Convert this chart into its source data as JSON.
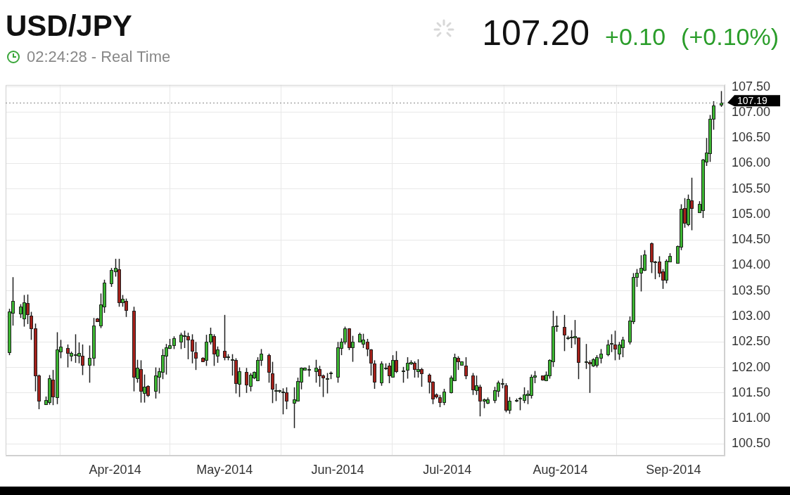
{
  "chart_data": {
    "type": "candlestick",
    "title": "USD/JPY",
    "subtitle": "02:24:28 - Real Time",
    "annotations": [
      "107.20",
      "+0.10",
      "(+0.10%)"
    ],
    "x": [
      "2014-03-03",
      "2014-03-04",
      "2014-03-06",
      "2014-03-07",
      "2014-03-08",
      "2014-03-09",
      "2014-03-10",
      "2014-03-11",
      "2014-03-13",
      "2014-03-14",
      "2014-03-15",
      "2014-03-16",
      "2014-03-17",
      "2014-03-19",
      "2014-03-20",
      "2014-03-21",
      "2014-03-22",
      "2014-03-23",
      "2014-03-25",
      "2014-03-26",
      "2014-03-27",
      "2014-03-28",
      "2014-03-29",
      "2014-03-31",
      "2014-04-01",
      "2014-04-02",
      "2014-04-03",
      "2014-04-04",
      "2014-04-06",
      "2014-04-07",
      "2014-04-08",
      "2014-04-09",
      "2014-04-10",
      "2014-04-12",
      "2014-04-13",
      "2014-04-14",
      "2014-04-15",
      "2014-04-16",
      "2014-04-17",
      "2014-04-19",
      "2014-04-20",
      "2014-04-21",
      "2014-04-22",
      "2014-04-23",
      "2014-04-25",
      "2014-04-26",
      "2014-04-27",
      "2014-04-28",
      "2014-04-29",
      "2014-05-01",
      "2014-05-02",
      "2014-05-03",
      "2014-05-04",
      "2014-05-05",
      "2014-05-07",
      "2014-05-08",
      "2014-05-09",
      "2014-05-10",
      "2014-05-11",
      "2014-05-13",
      "2014-05-14",
      "2014-05-15",
      "2014-05-16",
      "2014-05-17",
      "2014-05-18",
      "2014-05-20",
      "2014-05-21",
      "2014-05-22",
      "2014-05-23",
      "2014-05-24",
      "2014-05-26",
      "2014-05-27",
      "2014-05-28",
      "2014-05-29",
      "2014-05-30",
      "2014-06-01",
      "2014-06-02",
      "2014-06-03",
      "2014-06-04",
      "2014-06-05",
      "2014-06-07",
      "2014-06-08",
      "2014-06-09",
      "2014-06-10",
      "2014-06-11",
      "2014-06-13",
      "2014-06-14",
      "2014-06-15",
      "2014-06-16",
      "2014-06-17",
      "2014-06-19",
      "2014-06-20",
      "2014-06-21",
      "2014-06-22",
      "2014-06-23",
      "2014-06-24",
      "2014-06-26",
      "2014-06-27",
      "2014-06-28",
      "2014-06-29",
      "2014-06-30",
      "2014-07-02",
      "2014-07-03",
      "2014-07-04",
      "2014-07-05",
      "2014-07-06",
      "2014-07-08",
      "2014-07-09",
      "2014-07-10",
      "2014-07-11",
      "2014-07-12",
      "2014-07-14",
      "2014-07-15",
      "2014-07-16",
      "2014-07-17",
      "2014-07-18",
      "2014-07-20",
      "2014-07-21",
      "2014-07-22",
      "2014-07-23",
      "2014-07-24",
      "2014-07-25",
      "2014-07-27",
      "2014-07-28",
      "2014-07-29",
      "2014-07-30",
      "2014-07-31",
      "2014-08-02",
      "2014-08-03",
      "2014-08-04",
      "2014-08-05",
      "2014-08-06",
      "2014-08-08",
      "2014-08-09",
      "2014-08-10",
      "2014-08-11",
      "2014-08-12",
      "2014-08-14",
      "2014-08-15",
      "2014-08-16",
      "2014-08-17",
      "2014-08-18",
      "2014-08-20",
      "2014-08-21",
      "2014-08-22",
      "2014-08-23",
      "2014-08-24",
      "2014-08-26",
      "2014-08-27",
      "2014-08-28",
      "2014-08-29",
      "2014-08-30",
      "2014-08-31",
      "2014-09-02",
      "2014-09-03",
      "2014-09-04",
      "2014-09-05",
      "2014-09-06",
      "2014-09-08",
      "2014-09-09",
      "2014-09-10",
      "2014-09-11",
      "2014-09-12",
      "2014-09-14"
    ],
    "ohlc": [
      [
        102.3,
        103.15,
        102.24,
        103.1
      ],
      [
        103.07,
        103.77,
        102.82,
        103.3
      ],
      [
        103.05,
        103.24,
        102.97,
        103.19
      ],
      [
        102.96,
        103.42,
        102.8,
        103.28
      ],
      [
        103.26,
        103.43,
        102.85,
        103.04
      ],
      [
        103.01,
        103.09,
        102.54,
        102.77
      ],
      [
        102.76,
        102.86,
        101.53,
        101.84
      ],
      [
        101.84,
        101.86,
        101.18,
        101.35
      ],
      [
        101.28,
        101.43,
        101.27,
        101.36
      ],
      [
        101.32,
        101.85,
        101.27,
        101.78
      ],
      [
        101.76,
        101.95,
        101.26,
        101.43
      ],
      [
        101.42,
        102.69,
        101.28,
        102.35
      ],
      [
        102.31,
        102.54,
        102.18,
        102.41
      ],
      [
        102.38,
        102.45,
        102.0,
        102.28
      ],
      [
        102.23,
        102.31,
        102.12,
        102.28
      ],
      [
        102.25,
        102.65,
        102.09,
        102.26
      ],
      [
        102.23,
        102.49,
        102.08,
        102.28
      ],
      [
        102.23,
        102.45,
        101.85,
        102.05
      ],
      [
        102.05,
        102.43,
        101.7,
        102.18
      ],
      [
        102.18,
        102.97,
        102.03,
        102.82
      ],
      [
        102.96,
        102.97,
        102.89,
        102.91
      ],
      [
        102.82,
        103.45,
        102.77,
        103.24
      ],
      [
        103.19,
        103.72,
        103.07,
        103.66
      ],
      [
        103.65,
        103.95,
        103.58,
        103.91
      ],
      [
        103.88,
        104.13,
        103.78,
        103.95
      ],
      [
        103.92,
        104.13,
        103.19,
        103.28
      ],
      [
        103.28,
        103.42,
        103.19,
        103.35
      ],
      [
        103.31,
        103.35,
        102.99,
        103.12
      ],
      [
        103.11,
        103.19,
        101.53,
        101.81
      ],
      [
        101.78,
        102.15,
        101.7,
        101.99
      ],
      [
        101.97,
        102.14,
        101.31,
        101.54
      ],
      [
        101.5,
        101.86,
        101.31,
        101.62
      ],
      [
        101.64,
        101.65,
        101.42,
        101.46
      ],
      [
        101.54,
        102.0,
        101.39,
        101.84
      ],
      [
        101.82,
        101.99,
        101.49,
        101.93
      ],
      [
        101.91,
        102.36,
        101.77,
        102.24
      ],
      [
        102.23,
        102.46,
        101.86,
        102.39
      ],
      [
        102.38,
        102.56,
        102.36,
        102.43
      ],
      [
        102.43,
        102.61,
        102.36,
        102.57
      ],
      [
        102.5,
        102.68,
        102.36,
        102.64
      ],
      [
        102.62,
        102.72,
        102.38,
        102.63
      ],
      [
        102.62,
        102.68,
        102.16,
        102.54
      ],
      [
        102.54,
        102.65,
        102.08,
        102.32
      ],
      [
        102.3,
        102.5,
        101.95,
        102.18
      ],
      [
        102.19,
        102.2,
        102.12,
        102.12
      ],
      [
        102.15,
        102.64,
        102.03,
        102.5
      ],
      [
        102.5,
        102.78,
        102.45,
        102.65
      ],
      [
        102.62,
        102.65,
        102.03,
        102.27
      ],
      [
        102.23,
        102.41,
        102.09,
        102.35
      ],
      [
        102.32,
        103.03,
        102.14,
        102.2
      ],
      [
        102.2,
        102.26,
        102.14,
        102.21
      ],
      [
        102.15,
        102.26,
        101.84,
        102.16
      ],
      [
        102.14,
        102.18,
        101.49,
        101.69
      ],
      [
        101.68,
        102.0,
        101.42,
        101.93
      ],
      [
        101.91,
        101.99,
        101.5,
        101.66
      ],
      [
        101.64,
        101.89,
        101.53,
        101.86
      ],
      [
        101.8,
        101.92,
        101.77,
        101.91
      ],
      [
        101.74,
        102.2,
        101.73,
        102.14
      ],
      [
        102.14,
        102.36,
        102.03,
        102.27
      ],
      [
        102.24,
        102.27,
        101.7,
        101.91
      ],
      [
        101.88,
        102.11,
        101.3,
        101.58
      ],
      [
        101.54,
        101.68,
        101.34,
        101.55
      ],
      [
        101.54,
        101.56,
        101.5,
        101.55
      ],
      [
        101.51,
        101.59,
        101.08,
        101.52
      ],
      [
        101.51,
        101.61,
        101.18,
        101.34
      ],
      [
        101.31,
        101.61,
        100.81,
        101.38
      ],
      [
        101.34,
        101.8,
        101.34,
        101.73
      ],
      [
        101.72,
        102.0,
        101.57,
        101.99
      ],
      [
        101.95,
        102.0,
        101.94,
        101.99
      ],
      [
        101.96,
        102.04,
        101.82,
        101.97
      ],
      [
        101.92,
        102.15,
        101.7,
        102.0
      ],
      [
        101.97,
        102.03,
        101.62,
        101.84
      ],
      [
        101.84,
        101.86,
        101.42,
        101.8
      ],
      [
        101.78,
        101.89,
        101.49,
        101.79
      ],
      [
        101.89,
        101.92,
        101.77,
        101.9
      ],
      [
        101.81,
        102.5,
        101.7,
        102.39
      ],
      [
        102.38,
        102.57,
        102.24,
        102.51
      ],
      [
        102.51,
        102.8,
        102.45,
        102.77
      ],
      [
        102.76,
        102.77,
        102.34,
        102.39
      ],
      [
        102.39,
        102.62,
        102.11,
        102.5
      ],
      [
        102.51,
        102.68,
        102.51,
        102.65
      ],
      [
        102.46,
        102.66,
        102.38,
        102.54
      ],
      [
        102.51,
        102.56,
        102.22,
        102.36
      ],
      [
        102.35,
        102.36,
        101.84,
        102.09
      ],
      [
        102.07,
        102.14,
        101.58,
        101.72
      ],
      [
        101.7,
        102.12,
        101.64,
        102.08
      ],
      [
        101.99,
        102.08,
        101.95,
        102.0
      ],
      [
        102.04,
        102.09,
        101.69,
        101.84
      ],
      [
        101.82,
        102.24,
        101.8,
        102.15
      ],
      [
        102.15,
        102.32,
        101.89,
        101.93
      ],
      [
        101.92,
        102.01,
        101.7,
        101.94
      ],
      [
        101.95,
        102.2,
        101.78,
        102.09
      ],
      [
        102.07,
        102.14,
        102.05,
        102.11
      ],
      [
        102.09,
        102.12,
        101.8,
        101.96
      ],
      [
        101.93,
        102.16,
        101.8,
        101.97
      ],
      [
        101.97,
        101.99,
        101.62,
        101.88
      ],
      [
        101.86,
        101.88,
        101.49,
        101.72
      ],
      [
        101.72,
        101.73,
        101.28,
        101.39
      ],
      [
        101.47,
        101.49,
        101.39,
        101.43
      ],
      [
        101.42,
        101.46,
        101.22,
        101.32
      ],
      [
        101.32,
        101.58,
        101.26,
        101.53
      ],
      [
        101.51,
        101.84,
        101.49,
        101.8
      ],
      [
        101.74,
        102.27,
        101.73,
        102.2
      ],
      [
        102.18,
        102.22,
        101.95,
        102.12
      ],
      [
        102.05,
        102.12,
        102.05,
        102.12
      ],
      [
        102.04,
        102.2,
        101.77,
        101.84
      ],
      [
        101.84,
        101.89,
        101.46,
        101.57
      ],
      [
        101.55,
        101.84,
        101.46,
        101.65
      ],
      [
        101.62,
        101.66,
        101.04,
        101.34
      ],
      [
        101.34,
        101.39,
        101.2,
        101.38
      ],
      [
        101.3,
        101.41,
        101.28,
        101.38
      ],
      [
        101.36,
        101.62,
        101.3,
        101.55
      ],
      [
        101.54,
        101.74,
        101.42,
        101.7
      ],
      [
        101.68,
        101.78,
        101.59,
        101.69
      ],
      [
        101.65,
        101.69,
        101.12,
        101.16
      ],
      [
        101.16,
        101.42,
        101.09,
        101.34
      ],
      [
        101.34,
        101.39,
        101.32,
        101.36
      ],
      [
        101.39,
        101.42,
        101.16,
        101.4
      ],
      [
        101.36,
        101.61,
        101.3,
        101.47
      ],
      [
        101.45,
        101.55,
        101.28,
        101.49
      ],
      [
        101.46,
        101.86,
        101.39,
        101.81
      ],
      [
        101.81,
        101.93,
        101.69,
        101.84
      ],
      [
        101.84,
        101.84,
        101.74,
        101.76
      ],
      [
        101.74,
        101.92,
        101.73,
        101.86
      ],
      [
        101.84,
        102.16,
        101.78,
        102.14
      ],
      [
        102.12,
        103.11,
        102.01,
        102.81
      ],
      [
        102.81,
        103.01,
        102.7,
        102.82
      ],
      [
        102.8,
        103.03,
        102.32,
        102.64
      ],
      [
        102.58,
        102.62,
        102.54,
        102.59
      ],
      [
        102.59,
        102.73,
        102.38,
        102.6
      ],
      [
        102.58,
        102.93,
        102.45,
        102.61
      ],
      [
        102.58,
        102.58,
        101.77,
        102.11
      ],
      [
        102.11,
        102.46,
        101.97,
        102.12
      ],
      [
        102.11,
        102.14,
        101.5,
        102.07
      ],
      [
        102.03,
        102.18,
        102.01,
        102.16
      ],
      [
        102.05,
        102.24,
        102.0,
        102.2
      ],
      [
        102.18,
        102.36,
        102.08,
        102.27
      ],
      [
        102.26,
        102.54,
        102.22,
        102.45
      ],
      [
        102.46,
        102.65,
        102.3,
        102.47
      ],
      [
        102.45,
        102.72,
        102.14,
        102.36
      ],
      [
        102.27,
        102.5,
        102.15,
        102.45
      ],
      [
        102.4,
        102.6,
        102.2,
        102.54
      ],
      [
        102.51,
        103.0,
        102.45,
        102.92
      ],
      [
        102.91,
        103.85,
        102.85,
        103.77
      ],
      [
        103.77,
        103.93,
        103.58,
        103.85
      ],
      [
        103.85,
        104.2,
        103.49,
        103.95
      ],
      [
        103.91,
        104.3,
        103.89,
        104.22
      ],
      [
        104.43,
        104.45,
        103.85,
        104.07
      ],
      [
        104.07,
        104.09,
        103.73,
        104.08
      ],
      [
        104.08,
        104.18,
        103.77,
        103.86
      ],
      [
        103.88,
        103.93,
        103.54,
        103.72
      ],
      [
        103.72,
        104.12,
        103.65,
        104.09
      ],
      [
        104.07,
        104.24,
        104.07,
        104.19
      ],
      [
        104.05,
        104.39,
        104.05,
        104.38
      ],
      [
        104.36,
        105.2,
        104.3,
        105.11
      ],
      [
        105.12,
        105.32,
        104.74,
        104.84
      ],
      [
        104.8,
        105.39,
        104.77,
        105.3
      ],
      [
        105.27,
        105.72,
        104.69,
        105.12
      ],
      [
        105.04,
        105.26,
        105.04,
        105.2
      ],
      [
        105.08,
        106.09,
        104.93,
        106.07
      ],
      [
        106.04,
        106.5,
        105.95,
        106.22
      ],
      [
        106.2,
        106.95,
        106.03,
        106.88
      ],
      [
        106.88,
        107.22,
        106.66,
        107.14
      ],
      [
        107.15,
        107.42,
        107.11,
        107.19
      ]
    ],
    "colors": [
      "#3cb432",
      "#3cb432",
      "#3cb432",
      "#3cb432",
      "#a4211b",
      "#a4211b",
      "#a4211b",
      "#a4211b",
      "#3cb432",
      "#3cb432",
      "#a4211b",
      "#3cb432",
      "#3cb432",
      "#a4211b",
      "#3cb432",
      "#3cb432",
      "#3cb432",
      "#a4211b",
      "#3cb432",
      "#3cb432",
      "#a4211b",
      "#3cb432",
      "#3cb432",
      "#3cb432",
      "#3cb432",
      "#a4211b",
      "#3cb432",
      "#a4211b",
      "#a4211b",
      "#3cb432",
      "#a4211b",
      "#3cb432",
      "#a4211b",
      "#3cb432",
      "#3cb432",
      "#3cb432",
      "#3cb432",
      "#3cb432",
      "#3cb432",
      "#3cb432",
      "#3cb432",
      "#a4211b",
      "#a4211b",
      "#a4211b",
      "#a4211b",
      "#3cb432",
      "#3cb432",
      "#a4211b",
      "#3cb432",
      "#a4211b",
      "#3cb432",
      "#3cb432",
      "#a4211b",
      "#3cb432",
      "#a4211b",
      "#3cb432",
      "#3cb432",
      "#3cb432",
      "#3cb432",
      "#a4211b",
      "#a4211b",
      "#3cb432",
      "#3cb432",
      "#3cb432",
      "#a4211b",
      "#3cb432",
      "#3cb432",
      "#3cb432",
      "#3cb432",
      "#3cb432",
      "#3cb432",
      "#a4211b",
      "#a4211b",
      "#3cb432",
      "#3cb432",
      "#3cb432",
      "#3cb432",
      "#3cb432",
      "#a4211b",
      "#3cb432",
      "#3cb432",
      "#3cb432",
      "#a4211b",
      "#a4211b",
      "#a4211b",
      "#3cb432",
      "#3cb432",
      "#a4211b",
      "#3cb432",
      "#a4211b",
      "#3cb432",
      "#3cb432",
      "#3cb432",
      "#a4211b",
      "#3cb432",
      "#a4211b",
      "#a4211b",
      "#a4211b",
      "#a4211b",
      "#a4211b",
      "#3cb432",
      "#3cb432",
      "#3cb432",
      "#a4211b",
      "#3cb432",
      "#a4211b",
      "#a4211b",
      "#3cb432",
      "#a4211b",
      "#3cb432",
      "#3cb432",
      "#3cb432",
      "#3cb432",
      "#3cb432",
      "#a4211b",
      "#3cb432",
      "#3cb432",
      "#3cb432",
      "#3cb432",
      "#3cb432",
      "#3cb432",
      "#3cb432",
      "#a4211b",
      "#3cb432",
      "#3cb432",
      "#3cb432",
      "#3cb432",
      "#a4211b",
      "#3cb432",
      "#3cb432",
      "#3cb432",
      "#a4211b",
      "#3cb432",
      "#a4211b",
      "#3cb432",
      "#3cb432",
      "#3cb432",
      "#3cb432",
      "#3cb432",
      "#a4211b",
      "#3cb432",
      "#3cb432",
      "#3cb432",
      "#3cb432",
      "#3cb432",
      "#3cb432",
      "#3cb432",
      "#a4211b",
      "#3cb432",
      "#a4211b",
      "#a4211b",
      "#3cb432",
      "#3cb432",
      "#3cb432",
      "#3cb432",
      "#a4211b",
      "#3cb432",
      "#a4211b",
      "#3cb432",
      "#3cb432",
      "#3cb432",
      "#3cb432",
      "#3cb432",
      "#3cb432"
    ],
    "xlim": [
      "2014-03-02",
      "2014-09-15"
    ],
    "xticks": [
      {
        "value": "2014-04-01",
        "label": "Apr-2014"
      },
      {
        "value": "2014-05-01",
        "label": "May-2014"
      },
      {
        "value": "2014-06-01",
        "label": "Jun-2014"
      },
      {
        "value": "2014-07-01",
        "label": "Jul-2014"
      },
      {
        "value": "2014-08-01",
        "label": "Aug-2014"
      },
      {
        "value": "2014-09-01",
        "label": "Sep-2014"
      }
    ],
    "ylim": [
      100.27,
      107.54
    ],
    "yticks": [
      {
        "value": 100.5,
        "label": "100.50"
      },
      {
        "value": 101,
        "label": "101.00"
      },
      {
        "value": 101.5,
        "label": "101.50"
      },
      {
        "value": 102,
        "label": "102.00"
      },
      {
        "value": 102.5,
        "label": "102.50"
      },
      {
        "value": 103,
        "label": "103.00"
      },
      {
        "value": 103.5,
        "label": "103.50"
      },
      {
        "value": 104,
        "label": "104.00"
      },
      {
        "value": 104.5,
        "label": "104.50"
      },
      {
        "value": 105,
        "label": "105.00"
      },
      {
        "value": 105.5,
        "label": "105.50"
      },
      {
        "value": 106,
        "label": "106.00"
      },
      {
        "value": 106.5,
        "label": "106.50"
      },
      {
        "value": 107,
        "label": "107.00"
      },
      {
        "value": 107.5,
        "label": "107.50"
      }
    ],
    "grid": true,
    "ref_lines": [
      {
        "axis": "y",
        "value": 107.19,
        "label": "107.19",
        "color": "#888888",
        "line_style": "dotted"
      }
    ]
  }
}
